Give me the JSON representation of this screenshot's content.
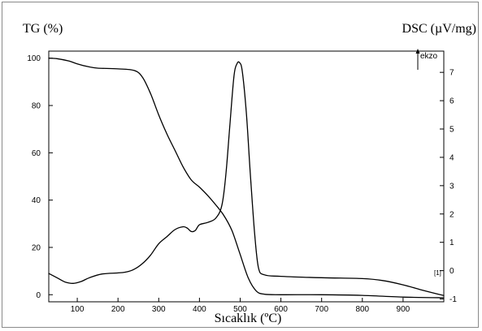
{
  "chart_data": {
    "type": "line",
    "xlabel": "Sıcaklık (ºC)",
    "ylabel_left": "TG (%)",
    "ylabel_right": "DSC (µV/mg)",
    "exo_label": "ekzo",
    "corner_mark": "[1]",
    "xlim": [
      30,
      1000
    ],
    "ylim_left": [
      -3,
      103
    ],
    "ylim_right": [
      -1.1,
      7.75
    ],
    "x_ticks": [
      100,
      200,
      300,
      400,
      500,
      600,
      700,
      800,
      900
    ],
    "y_ticks_left": [
      0,
      20,
      40,
      60,
      80,
      100
    ],
    "y_ticks_right": [
      -1,
      0,
      1,
      2,
      3,
      4,
      5,
      6,
      7
    ],
    "grid": false,
    "series": [
      {
        "axis": "left",
        "values": [
          [
            30,
            100
          ],
          [
            50,
            99.8
          ],
          [
            80,
            98.8
          ],
          [
            100,
            97.6
          ],
          [
            130,
            96.3
          ],
          [
            150,
            95.8
          ],
          [
            200,
            95.5
          ],
          [
            240,
            94.8
          ],
          [
            260,
            92
          ],
          [
            280,
            85
          ],
          [
            300,
            76
          ],
          [
            320,
            68
          ],
          [
            340,
            61
          ],
          [
            360,
            54
          ],
          [
            380,
            48.5
          ],
          [
            400,
            45.5
          ],
          [
            420,
            42
          ],
          [
            440,
            38
          ],
          [
            460,
            33.5
          ],
          [
            480,
            27
          ],
          [
            500,
            17
          ],
          [
            520,
            7
          ],
          [
            540,
            1.5
          ],
          [
            560,
            0.2
          ],
          [
            600,
            0
          ],
          [
            700,
            0
          ],
          [
            800,
            -0.3
          ],
          [
            900,
            -1
          ],
          [
            1000,
            -1.3
          ]
        ]
      },
      {
        "axis": "right",
        "values": [
          [
            30,
            -0.1
          ],
          [
            50,
            -0.25
          ],
          [
            70,
            -0.4
          ],
          [
            90,
            -0.45
          ],
          [
            110,
            -0.38
          ],
          [
            130,
            -0.25
          ],
          [
            160,
            -0.12
          ],
          [
            200,
            -0.08
          ],
          [
            220,
            -0.05
          ],
          [
            240,
            0.05
          ],
          [
            260,
            0.25
          ],
          [
            280,
            0.55
          ],
          [
            300,
            0.95
          ],
          [
            320,
            1.2
          ],
          [
            340,
            1.45
          ],
          [
            360,
            1.55
          ],
          [
            370,
            1.5
          ],
          [
            380,
            1.38
          ],
          [
            390,
            1.42
          ],
          [
            400,
            1.62
          ],
          [
            420,
            1.7
          ],
          [
            440,
            1.85
          ],
          [
            455,
            2.3
          ],
          [
            465,
            3.4
          ],
          [
            475,
            5.2
          ],
          [
            485,
            6.9
          ],
          [
            492,
            7.3
          ],
          [
            498,
            7.35
          ],
          [
            505,
            7.05
          ],
          [
            515,
            5.6
          ],
          [
            525,
            3.4
          ],
          [
            535,
            1.4
          ],
          [
            545,
            0.1
          ],
          [
            560,
            -0.15
          ],
          [
            600,
            -0.2
          ],
          [
            700,
            -0.25
          ],
          [
            800,
            -0.28
          ],
          [
            850,
            -0.35
          ],
          [
            900,
            -0.5
          ],
          [
            950,
            -0.7
          ],
          [
            1000,
            -0.88
          ]
        ]
      }
    ]
  }
}
